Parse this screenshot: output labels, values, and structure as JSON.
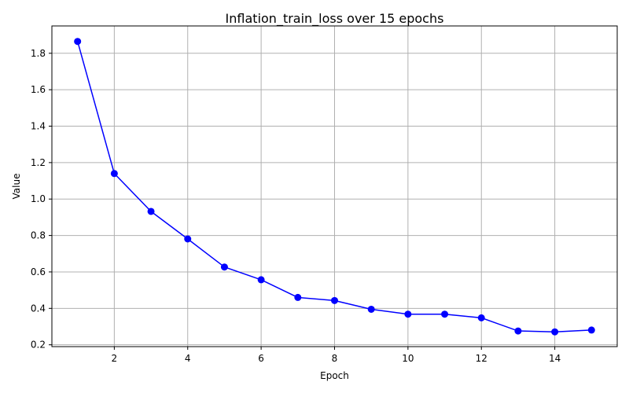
{
  "chart_data": {
    "type": "line",
    "title": "Inflation_train_loss over 15 epochs",
    "xlabel": "Epoch",
    "ylabel": "Value",
    "xlim": [
      0.3,
      15.7
    ],
    "ylim": [
      0.19,
      1.95
    ],
    "xticks": [
      2,
      4,
      6,
      8,
      10,
      12,
      14
    ],
    "yticks": [
      0.2,
      0.4,
      0.6,
      0.8,
      1.0,
      1.2,
      1.4,
      1.6,
      1.8
    ],
    "xtick_labels": [
      "2",
      "4",
      "6",
      "8",
      "10",
      "12",
      "14"
    ],
    "ytick_labels": [
      "0.2",
      "0.4",
      "0.6",
      "0.8",
      "1.0",
      "1.2",
      "1.4",
      "1.6",
      "1.8"
    ],
    "grid": true,
    "series": [
      {
        "color": "#0000ff",
        "marker": "circle",
        "x": [
          1,
          2,
          3,
          4,
          5,
          6,
          7,
          8,
          9,
          10,
          11,
          12,
          13,
          14,
          15
        ],
        "y": [
          1.865,
          1.14,
          0.932,
          0.781,
          0.627,
          0.557,
          0.46,
          0.443,
          0.395,
          0.368,
          0.368,
          0.348,
          0.276,
          0.271,
          0.281
        ]
      }
    ]
  }
}
